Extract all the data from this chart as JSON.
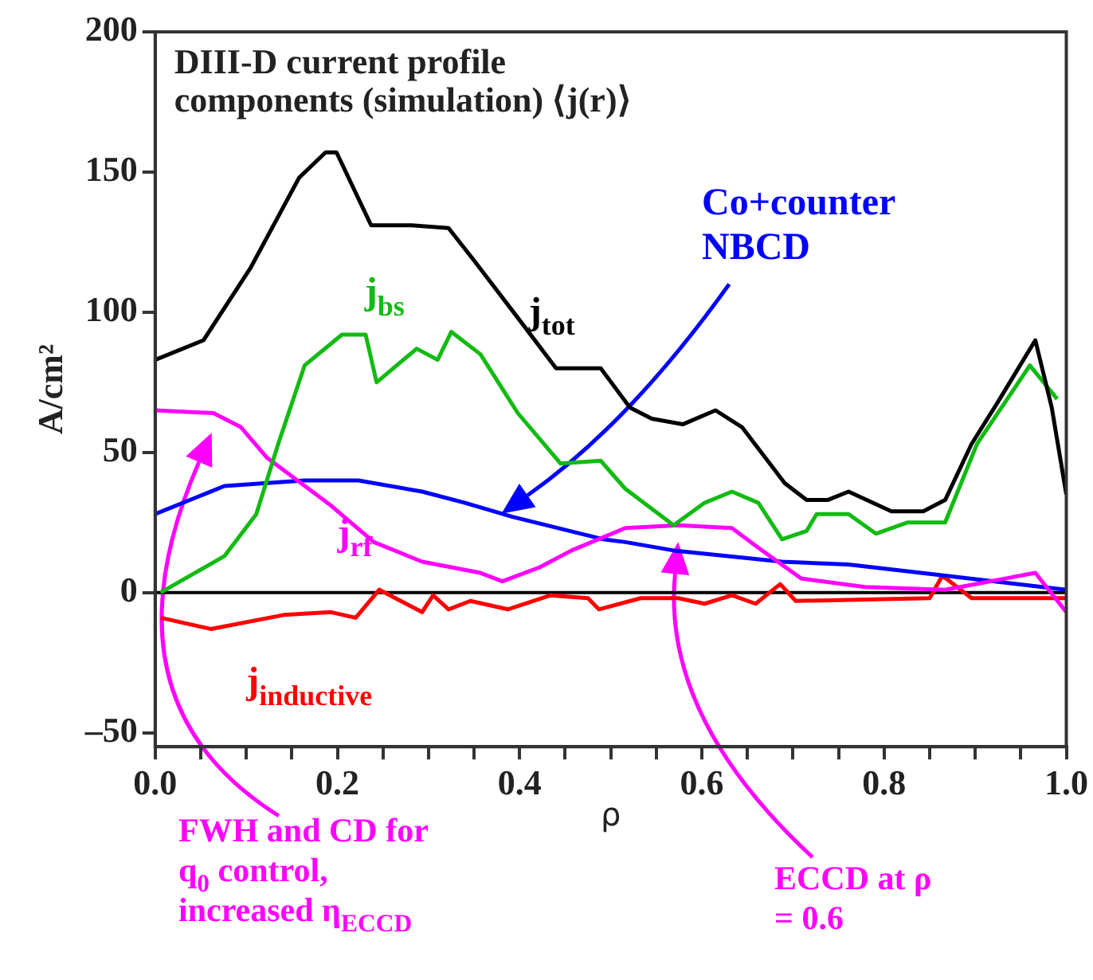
{
  "chart_data": {
    "type": "line",
    "title": "DIII-D current profile components (simulation) ⟨j(r)⟩",
    "xlabel": "ρ",
    "ylabel": "A/cm²",
    "xlim": [
      0,
      1
    ],
    "ylim": [
      -55,
      200
    ],
    "xticks": [
      {
        "value": 0,
        "label": "0.0"
      },
      {
        "value": 0.05,
        "label": null
      },
      {
        "value": 0.1,
        "label": null
      },
      {
        "value": 0.15,
        "label": null
      },
      {
        "value": 0.2,
        "label": "0.2"
      },
      {
        "value": 0.25,
        "label": null
      },
      {
        "value": 0.3,
        "label": null
      },
      {
        "value": 0.35,
        "label": null
      },
      {
        "value": 0.4,
        "label": "0.4"
      },
      {
        "value": 0.45,
        "label": null
      },
      {
        "value": 0.5,
        "label": null
      },
      {
        "value": 0.55,
        "label": null
      },
      {
        "value": 0.6,
        "label": "0.6"
      },
      {
        "value": 0.65,
        "label": null
      },
      {
        "value": 0.7,
        "label": null
      },
      {
        "value": 0.75,
        "label": null
      },
      {
        "value": 0.8,
        "label": "0.8"
      },
      {
        "value": 0.85,
        "label": null
      },
      {
        "value": 0.9,
        "label": null
      },
      {
        "value": 0.95,
        "label": null
      },
      {
        "value": 1,
        "label": "1.0"
      }
    ],
    "yticks": [
      {
        "value": -50,
        "label": "–50"
      },
      0,
      50,
      100,
      150,
      200
    ],
    "ref_lines": [
      {
        "axis": "y",
        "value": 0,
        "color": "#000000"
      }
    ],
    "series": [
      {
        "name": "j$_{tot}$",
        "color": "#000000",
        "x": [
          0,
          0.053,
          0.105,
          0.158,
          0.187,
          0.199,
          0.237,
          0.281,
          0.322,
          0.351,
          0.398,
          0.44,
          0.489,
          0.521,
          0.545,
          0.579,
          0.615,
          0.644,
          0.691,
          0.715,
          0.738,
          0.761,
          0.808,
          0.843,
          0.867,
          0.896,
          0.925,
          0.966,
          0.984,
          1
        ],
        "values": [
          83,
          90,
          116,
          148,
          157,
          157,
          131,
          131,
          130,
          118,
          98,
          80,
          80,
          66,
          62,
          60,
          65,
          59,
          39,
          33,
          33,
          36,
          29,
          29,
          33,
          53,
          68,
          90,
          66,
          35
        ]
      },
      {
        "name": "j$_{bs}$",
        "color": "#11bb11",
        "x": [
          0.006,
          0.076,
          0.111,
          0.135,
          0.164,
          0.205,
          0.231,
          0.243,
          0.287,
          0.31,
          0.325,
          0.357,
          0.398,
          0.445,
          0.489,
          0.516,
          0.569,
          0.603,
          0.633,
          0.662,
          0.688,
          0.715,
          0.726,
          0.761,
          0.791,
          0.826,
          0.867,
          0.902,
          0.96,
          0.99
        ],
        "values": [
          0,
          13,
          28,
          53,
          81,
          92,
          92,
          75,
          87,
          83,
          93,
          85,
          64,
          46,
          47,
          37,
          24,
          32,
          36,
          32,
          19,
          22,
          28,
          28,
          21,
          25,
          25,
          53,
          81,
          69
        ]
      },
      {
        "name": "j$_{rf}$",
        "color": "#ff00ff",
        "x": [
          0,
          0.064,
          0.094,
          0.123,
          0.193,
          0.24,
          0.293,
          0.357,
          0.381,
          0.422,
          0.457,
          0.516,
          0.574,
          0.633,
          0.662,
          0.709,
          0.779,
          0.867,
          0.966,
          1
        ],
        "values": [
          65,
          64,
          59,
          48,
          31,
          18,
          11,
          7,
          4,
          9,
          15,
          23,
          24,
          23,
          16,
          5,
          2,
          1,
          7,
          -7
        ]
      },
      {
        "name": "Co+counter NBCD",
        "color": "#0000ff",
        "x": [
          0,
          0.076,
          0.164,
          0.223,
          0.293,
          0.34,
          0.392,
          0.492,
          0.516,
          0.569,
          0.688,
          0.761,
          0.867,
          1
        ],
        "values": [
          28,
          38,
          40,
          40,
          36,
          32,
          27,
          19,
          18,
          15,
          11,
          10,
          6,
          1
        ]
      },
      {
        "name": "j$_{inductive}$",
        "color": "#ff0000",
        "x": [
          0.006,
          0.061,
          0.141,
          0.193,
          0.22,
          0.246,
          0.293,
          0.305,
          0.322,
          0.346,
          0.387,
          0.434,
          0.475,
          0.487,
          0.533,
          0.574,
          0.603,
          0.633,
          0.659,
          0.686,
          0.703,
          0.85,
          0.864,
          0.896,
          1
        ],
        "values": [
          -9,
          -13,
          -8,
          -7,
          -9,
          1,
          -7,
          -1,
          -6,
          -3,
          -6,
          -1,
          -2,
          -6,
          -2,
          -2,
          -4,
          -1,
          -4,
          3,
          -3,
          -2,
          6,
          -2,
          -2
        ]
      }
    ],
    "annotations": [
      "FWH and CD for q$_{0}$ control, increased η$_{ECCD}$",
      "ECCD at ρ = 0.6"
    ],
    "legend": false,
    "grid": false
  }
}
